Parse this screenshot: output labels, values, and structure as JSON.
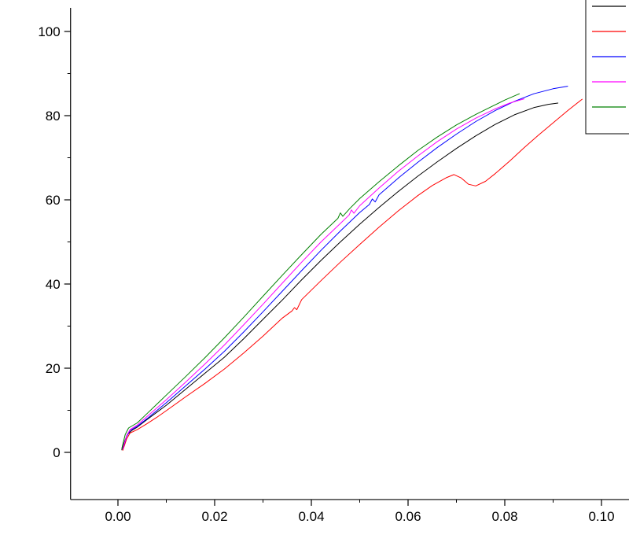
{
  "figure": {
    "background": "#ffffff"
  },
  "chart_data": {
    "type": "line",
    "title": "",
    "xlabel": "",
    "ylabel": "",
    "grid": false,
    "xlim": [
      -0.0098,
      0.1057
    ],
    "ylim": [
      -11.2,
      105.6
    ],
    "x_ticks": [
      {
        "value": 0.0,
        "label": "0.00"
      },
      {
        "value": 0.02,
        "label": "0.02"
      },
      {
        "value": 0.04,
        "label": "0.04"
      },
      {
        "value": 0.06,
        "label": "0.06"
      },
      {
        "value": 0.08,
        "label": "0.08"
      },
      {
        "value": 0.1,
        "label": "0.10"
      }
    ],
    "y_ticks": [
      {
        "value": 0,
        "label": "0"
      },
      {
        "value": 20,
        "label": "20"
      },
      {
        "value": 40,
        "label": "40"
      },
      {
        "value": 60,
        "label": "60"
      },
      {
        "value": 80,
        "label": "80"
      },
      {
        "value": 100,
        "label": "100"
      }
    ],
    "x_minor_ticks": [
      0.01,
      0.03,
      0.05,
      0.07,
      0.09
    ],
    "y_minor_ticks": [
      10,
      30,
      50,
      70,
      90
    ],
    "legend": {
      "position": "top-right",
      "clipped_at_right_edge": true,
      "entries": [
        {
          "name": "black",
          "label": "",
          "color": "#000000"
        },
        {
          "name": "red",
          "label": "",
          "color": "#ff0000"
        },
        {
          "name": "blue",
          "label": "",
          "color": "#0000ff"
        },
        {
          "name": "magenta",
          "label": "",
          "color": "#ff00ff"
        },
        {
          "name": "green",
          "label": "",
          "color": "#008000"
        }
      ]
    },
    "series": [
      {
        "name": "black",
        "color": "#000000",
        "points": [
          [
            0.0008,
            0.6
          ],
          [
            0.0015,
            3.0
          ],
          [
            0.002,
            4.3
          ],
          [
            0.003,
            5.3
          ],
          [
            0.004,
            6.0
          ],
          [
            0.006,
            7.8
          ],
          [
            0.008,
            9.5
          ],
          [
            0.01,
            11.2
          ],
          [
            0.014,
            15.0
          ],
          [
            0.018,
            18.8
          ],
          [
            0.022,
            22.6
          ],
          [
            0.026,
            27.0
          ],
          [
            0.03,
            31.6
          ],
          [
            0.034,
            36.2
          ],
          [
            0.038,
            41.0
          ],
          [
            0.042,
            45.6
          ],
          [
            0.046,
            50.0
          ],
          [
            0.05,
            54.2
          ],
          [
            0.054,
            58.2
          ],
          [
            0.058,
            62.0
          ],
          [
            0.062,
            65.6
          ],
          [
            0.066,
            69.0
          ],
          [
            0.07,
            72.2
          ],
          [
            0.074,
            75.2
          ],
          [
            0.078,
            77.9
          ],
          [
            0.082,
            80.2
          ],
          [
            0.086,
            81.9
          ],
          [
            0.089,
            82.7
          ],
          [
            0.091,
            83.0
          ]
        ]
      },
      {
        "name": "red",
        "color": "#ff0000",
        "points": [
          [
            0.001,
            0.5
          ],
          [
            0.0018,
            3.2
          ],
          [
            0.0025,
            4.6
          ],
          [
            0.004,
            5.4
          ],
          [
            0.006,
            6.8
          ],
          [
            0.008,
            8.3
          ],
          [
            0.01,
            9.9
          ],
          [
            0.014,
            13.2
          ],
          [
            0.018,
            16.4
          ],
          [
            0.022,
            19.8
          ],
          [
            0.026,
            23.6
          ],
          [
            0.03,
            27.6
          ],
          [
            0.034,
            31.9
          ],
          [
            0.036,
            33.6
          ],
          [
            0.0365,
            34.4
          ],
          [
            0.037,
            33.9
          ],
          [
            0.038,
            36.3
          ],
          [
            0.042,
            40.8
          ],
          [
            0.046,
            45.2
          ],
          [
            0.05,
            49.4
          ],
          [
            0.054,
            53.5
          ],
          [
            0.058,
            57.4
          ],
          [
            0.062,
            61.0
          ],
          [
            0.065,
            63.4
          ],
          [
            0.068,
            65.3
          ],
          [
            0.0695,
            66.0
          ],
          [
            0.071,
            65.2
          ],
          [
            0.0725,
            63.7
          ],
          [
            0.074,
            63.3
          ],
          [
            0.076,
            64.4
          ],
          [
            0.078,
            66.2
          ],
          [
            0.081,
            69.2
          ],
          [
            0.084,
            72.4
          ],
          [
            0.087,
            75.4
          ],
          [
            0.09,
            78.3
          ],
          [
            0.093,
            81.2
          ],
          [
            0.096,
            83.9
          ]
        ]
      },
      {
        "name": "blue",
        "color": "#0000ff",
        "points": [
          [
            0.001,
            0.8
          ],
          [
            0.0018,
            3.8
          ],
          [
            0.0025,
            5.2
          ],
          [
            0.004,
            6.2
          ],
          [
            0.006,
            8.0
          ],
          [
            0.008,
            9.9
          ],
          [
            0.01,
            11.8
          ],
          [
            0.014,
            15.8
          ],
          [
            0.018,
            19.8
          ],
          [
            0.022,
            24.0
          ],
          [
            0.026,
            28.6
          ],
          [
            0.03,
            33.4
          ],
          [
            0.034,
            38.3
          ],
          [
            0.038,
            43.2
          ],
          [
            0.042,
            48.0
          ],
          [
            0.046,
            52.6
          ],
          [
            0.05,
            57.0
          ],
          [
            0.052,
            58.9
          ],
          [
            0.0526,
            60.2
          ],
          [
            0.0532,
            59.5
          ],
          [
            0.054,
            61.2
          ],
          [
            0.058,
            65.2
          ],
          [
            0.062,
            68.9
          ],
          [
            0.066,
            72.4
          ],
          [
            0.07,
            75.6
          ],
          [
            0.074,
            78.6
          ],
          [
            0.078,
            81.2
          ],
          [
            0.082,
            83.4
          ],
          [
            0.086,
            85.2
          ],
          [
            0.09,
            86.4
          ],
          [
            0.093,
            87.0
          ]
        ]
      },
      {
        "name": "magenta",
        "color": "#ff00ff",
        "points": [
          [
            0.001,
            0.8
          ],
          [
            0.0018,
            4.0
          ],
          [
            0.0025,
            5.4
          ],
          [
            0.004,
            6.5
          ],
          [
            0.006,
            8.5
          ],
          [
            0.008,
            10.5
          ],
          [
            0.01,
            12.5
          ],
          [
            0.014,
            16.7
          ],
          [
            0.018,
            21.0
          ],
          [
            0.022,
            25.5
          ],
          [
            0.026,
            30.3
          ],
          [
            0.03,
            35.2
          ],
          [
            0.034,
            40.2
          ],
          [
            0.038,
            45.2
          ],
          [
            0.042,
            50.0
          ],
          [
            0.046,
            54.4
          ],
          [
            0.0478,
            56.4
          ],
          [
            0.0483,
            57.6
          ],
          [
            0.0488,
            56.8
          ],
          [
            0.05,
            58.6
          ],
          [
            0.054,
            62.8
          ],
          [
            0.058,
            66.8
          ],
          [
            0.062,
            70.4
          ],
          [
            0.066,
            73.8
          ],
          [
            0.07,
            76.8
          ],
          [
            0.074,
            79.4
          ],
          [
            0.078,
            81.6
          ],
          [
            0.081,
            83.0
          ],
          [
            0.084,
            84.0
          ]
        ]
      },
      {
        "name": "green",
        "color": "#008000",
        "points": [
          [
            0.0008,
            0.9
          ],
          [
            0.0015,
            4.2
          ],
          [
            0.0022,
            5.8
          ],
          [
            0.004,
            7.0
          ],
          [
            0.006,
            9.2
          ],
          [
            0.008,
            11.4
          ],
          [
            0.01,
            13.6
          ],
          [
            0.014,
            18.0
          ],
          [
            0.018,
            22.5
          ],
          [
            0.022,
            27.2
          ],
          [
            0.026,
            32.1
          ],
          [
            0.03,
            37.1
          ],
          [
            0.034,
            42.1
          ],
          [
            0.038,
            47.0
          ],
          [
            0.042,
            51.8
          ],
          [
            0.0455,
            55.6
          ],
          [
            0.046,
            56.9
          ],
          [
            0.0465,
            56.1
          ],
          [
            0.048,
            58.0
          ],
          [
            0.05,
            60.3
          ],
          [
            0.054,
            64.3
          ],
          [
            0.058,
            68.1
          ],
          [
            0.062,
            71.7
          ],
          [
            0.066,
            74.9
          ],
          [
            0.07,
            77.8
          ],
          [
            0.074,
            80.3
          ],
          [
            0.077,
            82.0
          ],
          [
            0.08,
            83.7
          ],
          [
            0.083,
            85.2
          ]
        ]
      }
    ]
  }
}
